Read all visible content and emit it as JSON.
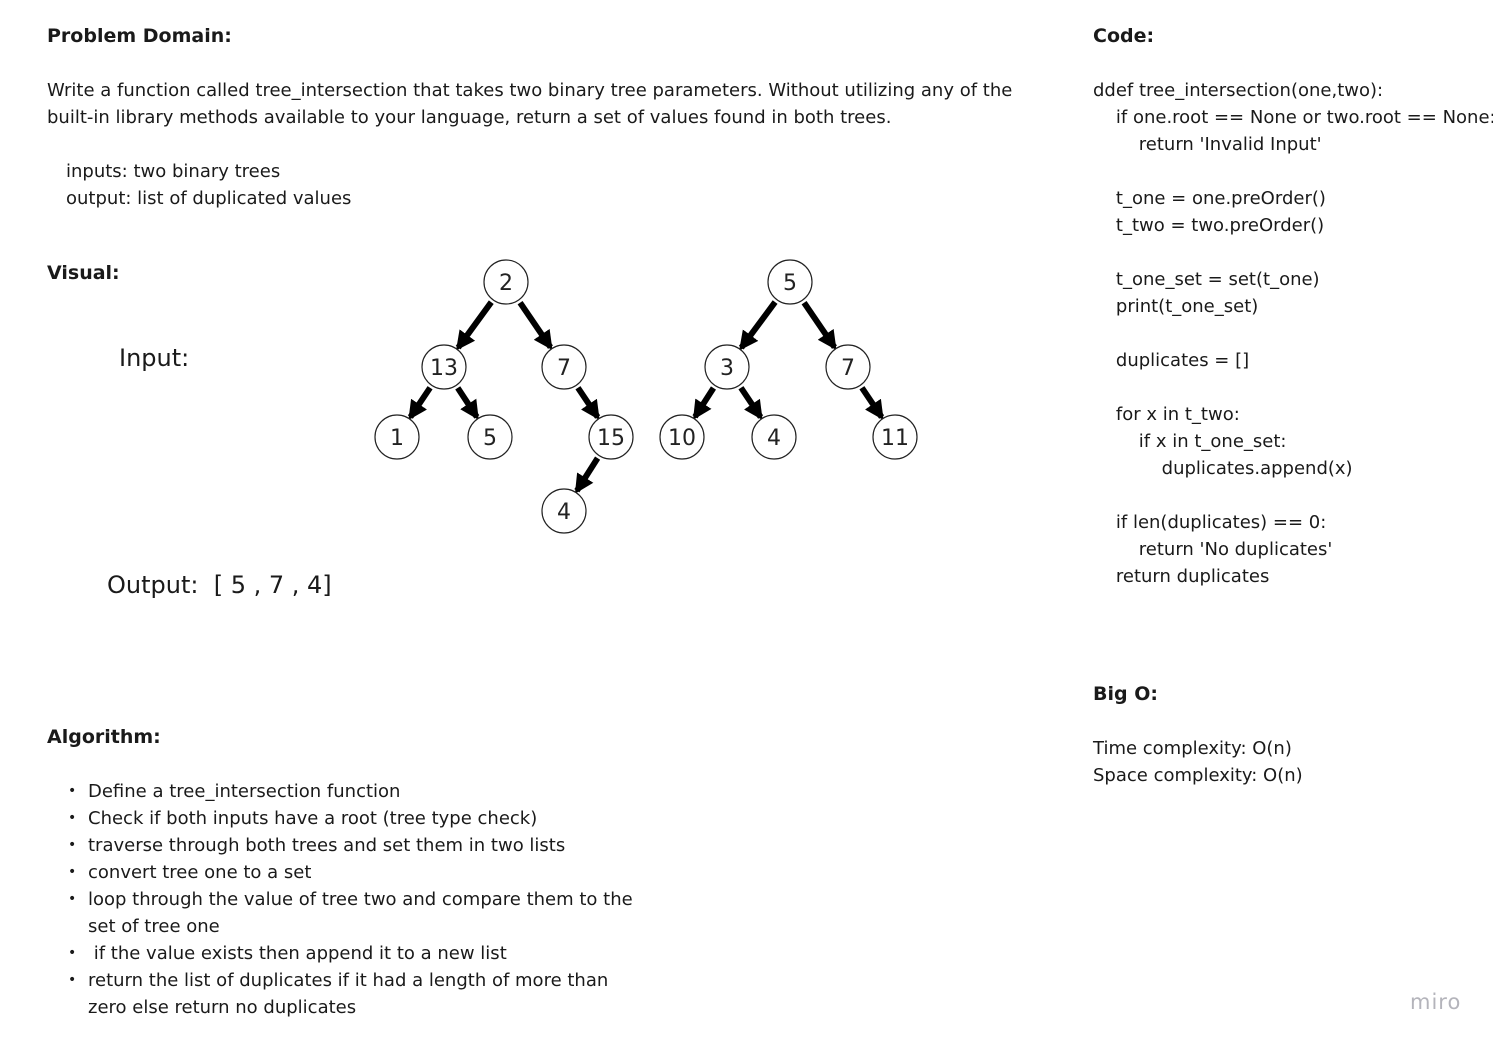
{
  "problem": {
    "heading": "Problem Domain:",
    "description_lines": [
      "Write a function called tree_intersection that takes two binary tree parameters. Without utilizing any of the",
      "built-in library methods available to your language, return a set of values found in both trees."
    ],
    "inputs": "inputs: two binary trees",
    "output": "output: list of duplicated values"
  },
  "visual": {
    "heading": "Visual:",
    "input_label": "Input:",
    "output_label": "Output:  [ 5 , 7 , 4]",
    "tree_one": {
      "nodes": [
        {
          "id": "n2",
          "value": "2"
        },
        {
          "id": "n13",
          "value": "13"
        },
        {
          "id": "n7a",
          "value": "7"
        },
        {
          "id": "n1",
          "value": "1"
        },
        {
          "id": "n5a",
          "value": "5"
        },
        {
          "id": "n15",
          "value": "15"
        },
        {
          "id": "n4a",
          "value": "4"
        }
      ],
      "edges": [
        [
          "n2",
          "n13"
        ],
        [
          "n2",
          "n7a"
        ],
        [
          "n13",
          "n1"
        ],
        [
          "n13",
          "n5a"
        ],
        [
          "n7a",
          "n15"
        ],
        [
          "n15",
          "n4a"
        ]
      ]
    },
    "tree_two": {
      "nodes": [
        {
          "id": "n5b",
          "value": "5"
        },
        {
          "id": "n3",
          "value": "3"
        },
        {
          "id": "n7b",
          "value": "7"
        },
        {
          "id": "n10",
          "value": "10"
        },
        {
          "id": "n4b",
          "value": "4"
        },
        {
          "id": "n11",
          "value": "11"
        }
      ],
      "edges": [
        [
          "n5b",
          "n3"
        ],
        [
          "n5b",
          "n7b"
        ],
        [
          "n3",
          "n10"
        ],
        [
          "n3",
          "n4b"
        ],
        [
          "n7b",
          "n11"
        ]
      ]
    }
  },
  "algorithm": {
    "heading": "Algorithm:",
    "steps": [
      "Define a tree_intersection function",
      "Check if both inputs have a root (tree type check)",
      "traverse through both trees and set them in two lists",
      "convert tree one to a set",
      "loop through the value of tree two and compare them to the set of tree one",
      " if the value exists then append it to a new list",
      "return the list of duplicates if it had a length of more than zero else return no duplicates"
    ]
  },
  "code": {
    "heading": "Code:",
    "lines": [
      "ddef tree_intersection(one,two):",
      "    if one.root == None or two.root == None:",
      "        return 'Invalid Input'",
      "",
      "    t_one = one.preOrder()",
      "    t_two = two.preOrder()",
      "",
      "    t_one_set = set(t_one)",
      "    print(t_one_set)",
      "",
      "    duplicates = []",
      "",
      "    for x in t_two:",
      "        if x in t_one_set:",
      "            duplicates.append(x)",
      "",
      "    if len(duplicates) == 0:",
      "        return 'No duplicates'",
      "    return duplicates"
    ]
  },
  "big_o": {
    "heading": "Big O:",
    "time": "Time complexity: O(n)",
    "space": "Space complexity: O(n)"
  },
  "brand": "miro"
}
